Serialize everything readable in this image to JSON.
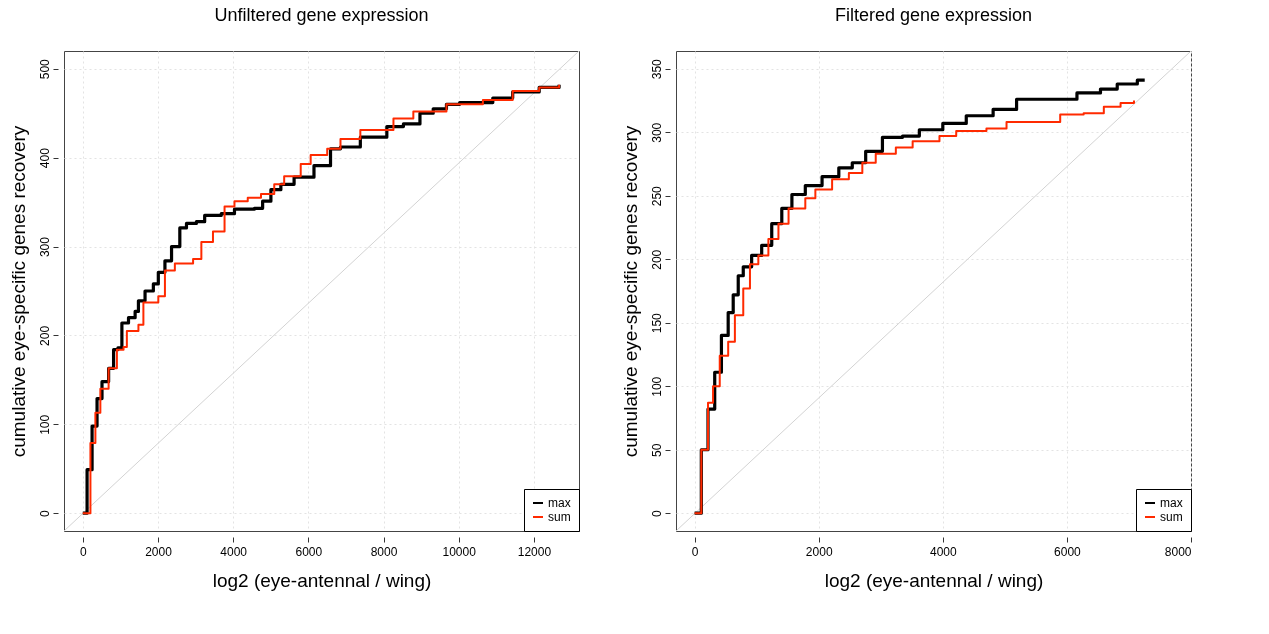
{
  "chart_data": [
    {
      "type": "step",
      "title": "Unfiltered  gene expression",
      "xlabel": "log2 (eye-antennal / wing)",
      "ylabel": "cumulative eye-specific genes recovery",
      "xlim": [
        -500,
        13200
      ],
      "ylim": [
        -20,
        520
      ],
      "xticks": [
        0,
        2000,
        4000,
        6000,
        8000,
        10000,
        12000
      ],
      "yticks": [
        0,
        100,
        200,
        300,
        400,
        500
      ],
      "grid": true,
      "legend": "bottom right",
      "series": [
        {
          "type": "line",
          "color": "#d3d3d3",
          "x": [
            -500,
            13200
          ],
          "values": [
            -20,
            520
          ]
        },
        {
          "name": "max",
          "color": "#000000",
          "x": [
            0,
            114,
            247,
            379,
            511,
            687,
            819,
            934,
            1040,
            1216,
            1392,
            1480,
            1656,
            1877,
            2009,
            2185,
            2361,
            2581,
            2758,
            3022,
            3242,
            3683,
            4035,
            4564,
            4784,
            5004,
            5269,
            5621,
            6150,
            6590,
            6855,
            7383,
            8088,
            8529,
            8969,
            9322,
            9674,
            10026,
            10643,
            10907,
            11436,
            12141,
            12670
          ],
          "values": [
            0,
            49,
            98,
            129,
            148,
            163,
            184,
            186,
            214,
            220,
            227,
            239,
            250,
            258,
            271,
            284,
            300,
            321,
            326,
            328,
            335,
            337,
            342,
            343,
            351,
            364,
            370,
            378,
            391,
            410,
            412,
            423,
            435,
            438,
            450,
            455,
            460,
            462,
            462,
            467,
            474,
            479,
            482
          ]
        },
        {
          "name": "sum",
          "color": "#ff2a00",
          "x": [
            0,
            203,
            335,
            467,
            687,
            907,
            1084,
            1172,
            1480,
            1612,
            2009,
            2185,
            2449,
            2934,
            3154,
            3463,
            3771,
            4035,
            4388,
            4740,
            5093,
            5357,
            5797,
            6062,
            6502,
            6855,
            7383,
            8264,
            8793,
            9674,
            10643,
            11436,
            12141,
            12670
          ],
          "values": [
            0,
            79,
            113,
            140,
            163,
            184,
            187,
            205,
            212,
            237,
            244,
            273,
            281,
            286,
            305,
            317,
            345,
            351,
            355,
            359,
            370,
            379,
            393,
            403,
            410,
            421,
            431,
            444,
            452,
            460,
            465,
            475,
            479,
            482
          ]
        }
      ]
    },
    {
      "type": "step",
      "title": "Filtered gene expression",
      "xlabel": "log2 (eye-antennal / wing)",
      "ylabel": "cumulative eye-specific genes recovery",
      "xlim": [
        -300,
        8000
      ],
      "ylim": [
        -14,
        364
      ],
      "xticks": [
        0,
        2000,
        4000,
        6000,
        8000
      ],
      "yticks": [
        0,
        50,
        100,
        150,
        200,
        250,
        300,
        350
      ],
      "grid": true,
      "legend": "bottom right",
      "series": [
        {
          "type": "line",
          "color": "#d3d3d3",
          "x": [
            -300,
            8000
          ],
          "values": [
            -14,
            364
          ]
        },
        {
          "name": "max",
          "color": "#000000",
          "x": [
            0,
            108,
            216,
            324,
            432,
            541,
            622,
            703,
            784,
            919,
            1081,
            1243,
            1405,
            1568,
            1784,
            2054,
            2324,
            2541,
            2757,
            3027,
            3351,
            3622,
            4000,
            4378,
            4811,
            5189,
            5892,
            6162,
            6541,
            6811,
            7135,
            7254
          ],
          "values": [
            0,
            50,
            82,
            111,
            140,
            158,
            172,
            187,
            194,
            203,
            211,
            228,
            240,
            251,
            258,
            265,
            272,
            276,
            285,
            296,
            297,
            302,
            307,
            313,
            318,
            326,
            326,
            331,
            334,
            338,
            341,
            341
          ]
        },
        {
          "name": "sum",
          "color": "#ff2a00",
          "x": [
            0,
            108,
            216,
            297,
            405,
            541,
            649,
            784,
            892,
            1027,
            1189,
            1351,
            1514,
            1784,
            1946,
            2216,
            2486,
            2703,
            2919,
            3243,
            3514,
            3946,
            4216,
            4703,
            5027,
            5730,
            5892,
            6270,
            6595,
            6865,
            7081
          ],
          "values": [
            0,
            50,
            87,
            100,
            124,
            135,
            156,
            177,
            196,
            203,
            216,
            228,
            240,
            248,
            255,
            263,
            268,
            276,
            283,
            288,
            293,
            297,
            301,
            303,
            308,
            308,
            314,
            315,
            320,
            323,
            325
          ]
        }
      ]
    }
  ]
}
